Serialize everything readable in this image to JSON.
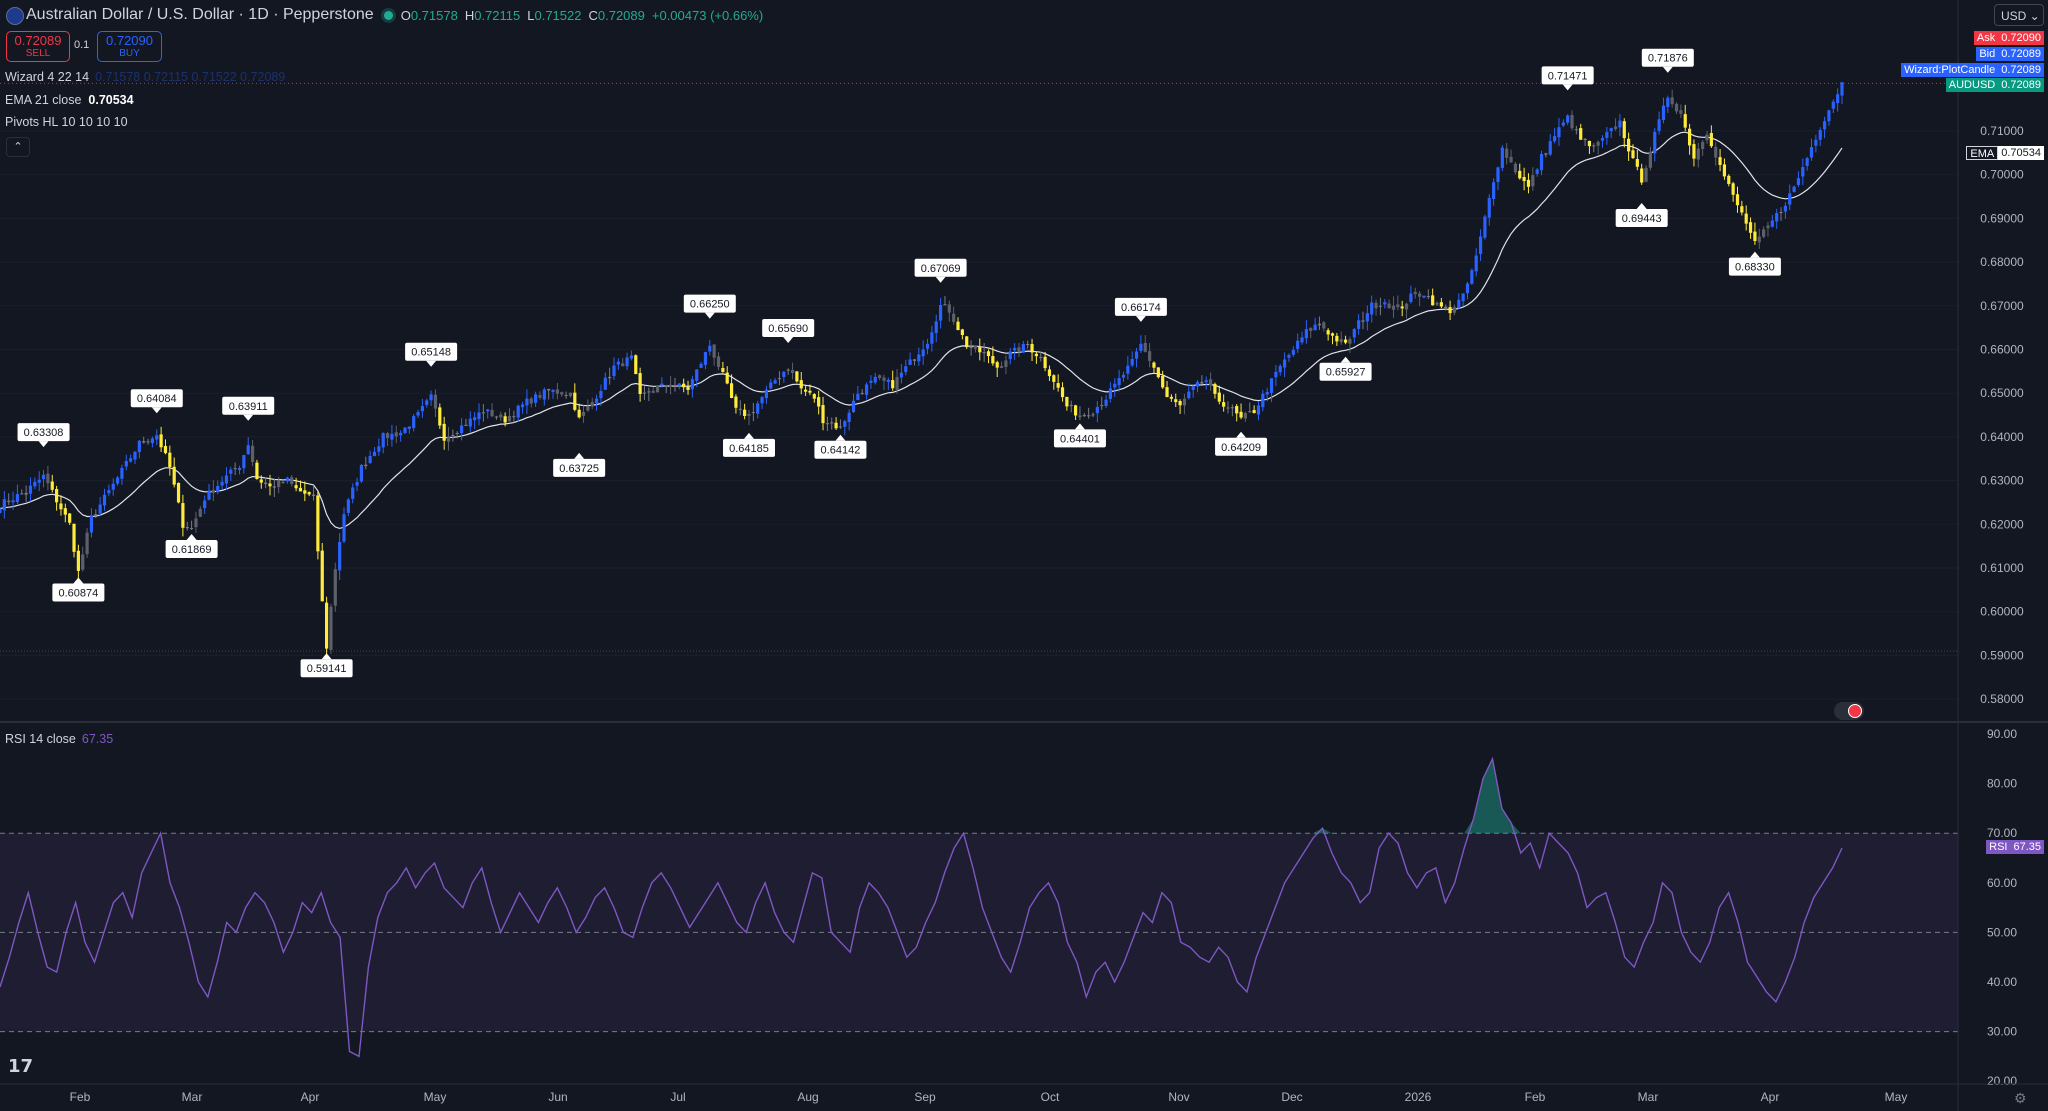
{
  "header": {
    "title": "Australian Dollar / U.S. Dollar · 1D · Pepperstone",
    "ohlc": [
      {
        "k": "O",
        "v": "0.71578"
      },
      {
        "k": "H",
        "v": "0.72115"
      },
      {
        "k": "L",
        "v": "0.71522"
      },
      {
        "k": "C",
        "v": "0.72089"
      }
    ],
    "change": "+0.00473 (+0.66%)"
  },
  "trade": {
    "sell_price": "0.72089",
    "sell_label": "SELL",
    "buy_price": "0.72090",
    "buy_label": "BUY",
    "qty": "0.1"
  },
  "legend": {
    "wizard": "Wizard 4 22 14",
    "wizard_vals": "0.71578  0.72115  0.71522  0.72089",
    "ema_label": "EMA 21 close",
    "ema_value": "0.70534",
    "pivots_label": "Pivots HL 10 10 10 10",
    "rsi_label": "RSI 14 close",
    "rsi_value": "67.35"
  },
  "currency": "USD",
  "price_tags": [
    {
      "name": "Ask",
      "value": "0.72090",
      "color": "#f23645"
    },
    {
      "name": "Bid",
      "value": "0.72089",
      "color": "#2962ff"
    },
    {
      "name": "Wizard:PlotCandle",
      "value": "0.72089",
      "color": "#2962ff"
    },
    {
      "name": "AUDUSD",
      "value": "0.72089",
      "color": "#089981"
    }
  ],
  "ema_tag": {
    "name": "EMA",
    "value": "0.70534"
  },
  "rsi_tag": {
    "name": "RSI",
    "value": "67.35"
  },
  "chart_data": [
    {
      "type": "candlestick",
      "title": "Australian Dollar / U.S. Dollar",
      "y_ticks": [
        "0.71000",
        "0.70000",
        "0.69000",
        "0.68000",
        "0.67000",
        "0.66000",
        "0.65000",
        "0.64000",
        "0.63000",
        "0.62000",
        "0.61000",
        "0.60000",
        "0.59000",
        "0.58000"
      ],
      "ylim": [
        0.5755,
        0.7223
      ],
      "x_labels": [
        "Feb",
        "Mar",
        "Apr",
        "May",
        "Jun",
        "Jul",
        "Aug",
        "Sep",
        "Oct",
        "Nov",
        "Dec",
        "2026",
        "Feb",
        "Mar",
        "Apr",
        "May"
      ],
      "price_path": [
        [
          0,
          0.6245
        ],
        [
          6,
          0.6275
        ],
        [
          10,
          0.631
        ],
        [
          16,
          0.62
        ],
        [
          18,
          0.609
        ],
        [
          21,
          0.6215
        ],
        [
          26,
          0.629
        ],
        [
          32,
          0.6385
        ],
        [
          36,
          0.6405
        ],
        [
          39,
          0.633
        ],
        [
          42,
          0.62
        ],
        [
          44,
          0.619
        ],
        [
          47,
          0.626
        ],
        [
          51,
          0.63
        ],
        [
          55,
          0.6335
        ],
        [
          57,
          0.6385
        ],
        [
          59,
          0.6305
        ],
        [
          62,
          0.6285
        ],
        [
          66,
          0.63
        ],
        [
          68,
          0.628
        ],
        [
          72,
          0.626
        ],
        [
          74,
          0.602
        ],
        [
          75,
          0.592
        ],
        [
          77,
          0.61
        ],
        [
          79,
          0.6225
        ],
        [
          83,
          0.633
        ],
        [
          88,
          0.64
        ],
        [
          92,
          0.641
        ],
        [
          96,
          0.645
        ],
        [
          99,
          0.649
        ],
        [
          102,
          0.64
        ],
        [
          107,
          0.643
        ],
        [
          111,
          0.646
        ],
        [
          116,
          0.644
        ],
        [
          121,
          0.648
        ],
        [
          126,
          0.6505
        ],
        [
          131,
          0.65
        ],
        [
          133,
          0.644
        ],
        [
          136,
          0.648
        ],
        [
          141,
          0.656
        ],
        [
          145,
          0.658
        ],
        [
          147,
          0.649
        ],
        [
          150,
          0.651
        ],
        [
          154,
          0.652
        ],
        [
          158,
          0.651
        ],
        [
          161,
          0.657
        ],
        [
          163,
          0.661
        ],
        [
          166,
          0.654
        ],
        [
          169,
          0.646
        ],
        [
          172,
          0.645
        ],
        [
          175,
          0.649
        ],
        [
          178,
          0.653
        ],
        [
          181,
          0.656
        ],
        [
          184,
          0.651
        ],
        [
          187,
          0.649
        ],
        [
          189,
          0.644
        ],
        [
          193,
          0.642
        ],
        [
          197,
          0.65
        ],
        [
          201,
          0.653
        ],
        [
          205,
          0.652
        ],
        [
          209,
          0.657
        ],
        [
          213,
          0.662
        ],
        [
          216,
          0.67
        ],
        [
          218,
          0.669
        ],
        [
          222,
          0.661
        ],
        [
          226,
          0.659
        ],
        [
          229,
          0.656
        ],
        [
          232,
          0.659
        ],
        [
          236,
          0.661
        ],
        [
          239,
          0.658
        ],
        [
          242,
          0.653
        ],
        [
          245,
          0.647
        ],
        [
          248,
          0.645
        ],
        [
          251,
          0.646
        ],
        [
          254,
          0.649
        ],
        [
          257,
          0.653
        ],
        [
          260,
          0.657
        ],
        [
          262,
          0.661
        ],
        [
          265,
          0.656
        ],
        [
          268,
          0.649
        ],
        [
          271,
          0.647
        ],
        [
          274,
          0.651
        ],
        [
          277,
          0.653
        ],
        [
          279,
          0.649
        ],
        [
          282,
          0.647
        ],
        [
          285,
          0.644
        ],
        [
          288,
          0.646
        ],
        [
          291,
          0.651
        ],
        [
          294,
          0.656
        ],
        [
          297,
          0.66
        ],
        [
          300,
          0.664
        ],
        [
          303,
          0.666
        ],
        [
          306,
          0.663
        ],
        [
          309,
          0.661
        ],
        [
          312,
          0.666
        ],
        [
          315,
          0.67
        ],
        [
          318,
          0.671
        ],
        [
          321,
          0.669
        ],
        [
          324,
          0.672
        ],
        [
          327,
          0.673
        ],
        [
          330,
          0.67
        ],
        [
          333,
          0.669
        ],
        [
          336,
          0.672
        ],
        [
          339,
          0.681
        ],
        [
          341,
          0.69
        ],
        [
          343,
          0.699
        ],
        [
          345,
          0.706
        ],
        [
          348,
          0.701
        ],
        [
          351,
          0.697
        ],
        [
          354,
          0.704
        ],
        [
          357,
          0.709
        ],
        [
          360,
          0.713
        ],
        [
          363,
          0.708
        ],
        [
          366,
          0.706
        ],
        [
          369,
          0.709
        ],
        [
          372,
          0.712
        ],
        [
          375,
          0.703
        ],
        [
          377,
          0.699
        ],
        [
          380,
          0.709
        ],
        [
          383,
          0.718
        ],
        [
          386,
          0.714
        ],
        [
          389,
          0.704
        ],
        [
          392,
          0.71
        ],
        [
          395,
          0.702
        ],
        [
          398,
          0.695
        ],
        [
          401,
          0.689
        ],
        [
          403,
          0.684
        ],
        [
          406,
          0.688
        ],
        [
          409,
          0.692
        ],
        [
          412,
          0.697
        ],
        [
          415,
          0.704
        ],
        [
          418,
          0.711
        ],
        [
          421,
          0.717
        ],
        [
          423,
          0.7209
        ]
      ],
      "ema_value": 0.70534,
      "pivots": [
        {
          "i": 10,
          "v": "0.63308",
          "kind": "high"
        },
        {
          "i": 18,
          "v": "0.60874",
          "kind": "low"
        },
        {
          "i": 36,
          "v": "0.64084",
          "kind": "high"
        },
        {
          "i": 44,
          "v": "0.61869",
          "kind": "low"
        },
        {
          "i": 57,
          "v": "0.63911",
          "kind": "high"
        },
        {
          "i": 75,
          "v": "0.59141",
          "kind": "low"
        },
        {
          "i": 99,
          "v": "0.65148",
          "kind": "high"
        },
        {
          "i": 133,
          "v": "0.63725",
          "kind": "low"
        },
        {
          "i": 163,
          "v": "0.66250",
          "kind": "high"
        },
        {
          "i": 172,
          "v": "0.64185",
          "kind": "low"
        },
        {
          "i": 181,
          "v": "0.65690",
          "kind": "high"
        },
        {
          "i": 193,
          "v": "0.64142",
          "kind": "low"
        },
        {
          "i": 216,
          "v": "0.67069",
          "kind": "high"
        },
        {
          "i": 248,
          "v": "0.64401",
          "kind": "low"
        },
        {
          "i": 262,
          "v": "0.66174",
          "kind": "high"
        },
        {
          "i": 285,
          "v": "0.64209",
          "kind": "low"
        },
        {
          "i": 309,
          "v": "0.65927",
          "kind": "low"
        },
        {
          "i": 360,
          "v": "0.71471",
          "kind": "high"
        },
        {
          "i": 377,
          "v": "0.69443",
          "kind": "low"
        },
        {
          "i": 383,
          "v": "0.71876",
          "kind": "high"
        },
        {
          "i": 403,
          "v": "0.68330",
          "kind": "low"
        }
      ]
    },
    {
      "type": "line",
      "title": "RSI 14 close",
      "y_ticks": [
        "90.00",
        "80.00",
        "70.00",
        "60.00",
        "50.00",
        "40.00",
        "30.00",
        "20.00"
      ],
      "ylim": [
        20,
        90
      ],
      "band": [
        30,
        70
      ],
      "midline": 50,
      "values": [
        39,
        45,
        52,
        58,
        50,
        43,
        42,
        50,
        56,
        48,
        44,
        50,
        56,
        58,
        53,
        62,
        66,
        70,
        60,
        55,
        48,
        40,
        37,
        44,
        52,
        50,
        55,
        58,
        56,
        52,
        46,
        50,
        56,
        54,
        58,
        52,
        49,
        26,
        25,
        43,
        53,
        58,
        60,
        63,
        59,
        62,
        64,
        59,
        57,
        55,
        60,
        63,
        56,
        50,
        54,
        58,
        55,
        52,
        56,
        59,
        55,
        50,
        53,
        57,
        59,
        55,
        50,
        49,
        55,
        60,
        62,
        59,
        55,
        51,
        54,
        57,
        60,
        56,
        52,
        50,
        56,
        60,
        54,
        50,
        48,
        55,
        62,
        61,
        50,
        48,
        46,
        55,
        60,
        58,
        55,
        50,
        45,
        47,
        52,
        56,
        62,
        67,
        70,
        63,
        55,
        50,
        45,
        42,
        48,
        55,
        58,
        60,
        56,
        48,
        44,
        37,
        42,
        44,
        40,
        44,
        49,
        54,
        52,
        58,
        56,
        48,
        47,
        45,
        44,
        47,
        45,
        40,
        38,
        45,
        50,
        55,
        60,
        63,
        66,
        69,
        71,
        66,
        62,
        60,
        56,
        58,
        67,
        70,
        68,
        62,
        59,
        62,
        63,
        56,
        60,
        67,
        73,
        81,
        85,
        75,
        72,
        66,
        68,
        63,
        70,
        68,
        66,
        62,
        55,
        57,
        58,
        52,
        45,
        43,
        48,
        52,
        60,
        58,
        50,
        46,
        44,
        48,
        55,
        58,
        52,
        44,
        41,
        38,
        36,
        40,
        45,
        52,
        57,
        60,
        63,
        67
      ]
    }
  ]
}
